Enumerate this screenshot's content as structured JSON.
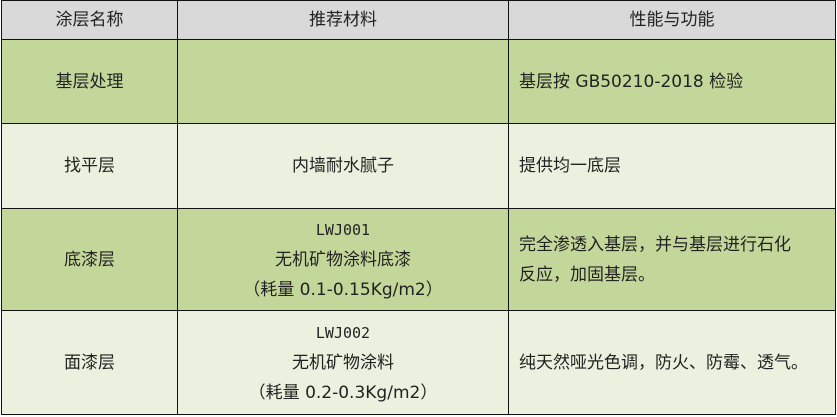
{
  "headers": [
    "涂层名称",
    "推荐材料",
    "性能与功能"
  ],
  "rows": [
    {
      "name": "基层处理",
      "material": [],
      "function": [
        "基层按 GB50210-2018 检验"
      ]
    },
    {
      "name": "找平层",
      "material": [
        "内墙耐水腻子"
      ],
      "function": [
        "提供均一底层"
      ]
    },
    {
      "name": "底漆层",
      "material": [
        "LWJ001",
        "无机矿物涂料底漆",
        "（耗量 0.1-0.15Kg/m2）"
      ],
      "function": [
        "完全渗透入基层，并与基层进行石化",
        "反应，加固基层。"
      ]
    },
    {
      "name": "面漆层",
      "material": [
        "LWJ002",
        "无机矿物涂料",
        "（耗量 0.2-0.3Kg/m2）"
      ],
      "function": [
        "纯天然哑光色调，防火、防霉、透气。"
      ]
    }
  ],
  "colors": {
    "header": "#d9d9d9",
    "dark_row": "#c4d79b",
    "light_row": "#ebf1de",
    "border": "#111111"
  }
}
